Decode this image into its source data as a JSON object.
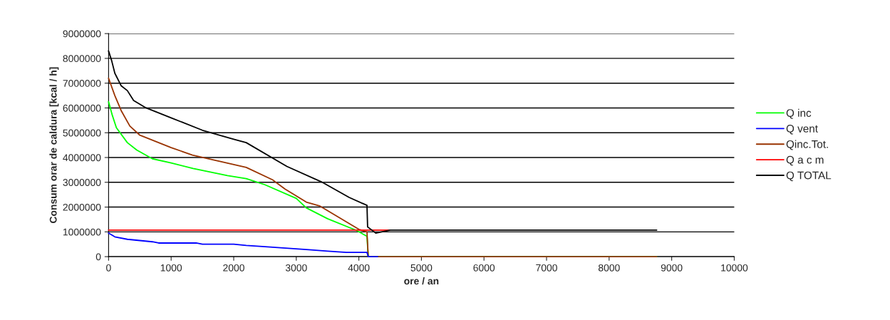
{
  "chart_data": {
    "type": "line",
    "xlabel": "ore / an",
    "ylabel": "Consum orar de caldura [kcal / h]",
    "xlim": [
      0,
      10000
    ],
    "xticks": [
      0,
      1000,
      2000,
      3000,
      4000,
      5000,
      6000,
      7000,
      8000,
      9000,
      10000
    ],
    "ylim": [
      0,
      9000000
    ],
    "yticks": [
      0,
      1000000,
      2000000,
      3000000,
      4000000,
      5000000,
      6000000,
      7000000,
      8000000,
      9000000
    ],
    "grid": "y",
    "legend": "right",
    "marker": "none",
    "line_style": "solid",
    "series": [
      {
        "name": "Q inc",
        "color": "#00ff00",
        "x": [
          0,
          60,
          125,
          300,
          450,
          700,
          1000,
          1350,
          1900,
          2200,
          2500,
          3000,
          3160,
          3500,
          3960,
          4130,
          4150,
          8760
        ],
        "values": [
          6250000,
          5700000,
          5200000,
          4600000,
          4300000,
          3950000,
          3780000,
          3560000,
          3270000,
          3150000,
          2900000,
          2350000,
          1970000,
          1530000,
          1060000,
          820000,
          0,
          0
        ]
      },
      {
        "name": "Q vent",
        "color": "#0000ff",
        "x": [
          0,
          100,
          300,
          500,
          700,
          800,
          1400,
          1500,
          2000,
          2200,
          2500,
          3200,
          3500,
          3800,
          4130,
          4150,
          4300
        ],
        "values": [
          950000,
          800000,
          700000,
          650000,
          600000,
          550000,
          550000,
          500000,
          500000,
          450000,
          400000,
          280000,
          220000,
          170000,
          170000,
          0,
          0
        ]
      },
      {
        "name": "Qinc.Tot.",
        "color": "#993300",
        "x": [
          0,
          100,
          200,
          340,
          500,
          1000,
          1340,
          2200,
          2620,
          2820,
          3160,
          3370,
          4000,
          4130,
          4150,
          8760
        ],
        "values": [
          7200000,
          6500000,
          5900000,
          5270000,
          4900000,
          4400000,
          4100000,
          3600000,
          3100000,
          2730000,
          2200000,
          2050000,
          1100000,
          1000000,
          0,
          0
        ]
      },
      {
        "name": "Q a c m",
        "color": "#ff0000",
        "x": [
          0,
          4490
        ],
        "values": [
          1070000,
          1070000
        ]
      },
      {
        "name": "Q TOTAL",
        "color": "#000000",
        "x": [
          0,
          50,
          100,
          200,
          300,
          400,
          600,
          800,
          1000,
          1500,
          2000,
          2200,
          2850,
          3400,
          3845,
          4130,
          4140,
          4270,
          4500,
          8760
        ],
        "values": [
          8300000,
          7900000,
          7400000,
          6900000,
          6700000,
          6300000,
          6000000,
          5800000,
          5600000,
          5100000,
          4740000,
          4600000,
          3640000,
          3020000,
          2390000,
          2070000,
          1200000,
          950000,
          1070000,
          1070000
        ]
      }
    ]
  }
}
